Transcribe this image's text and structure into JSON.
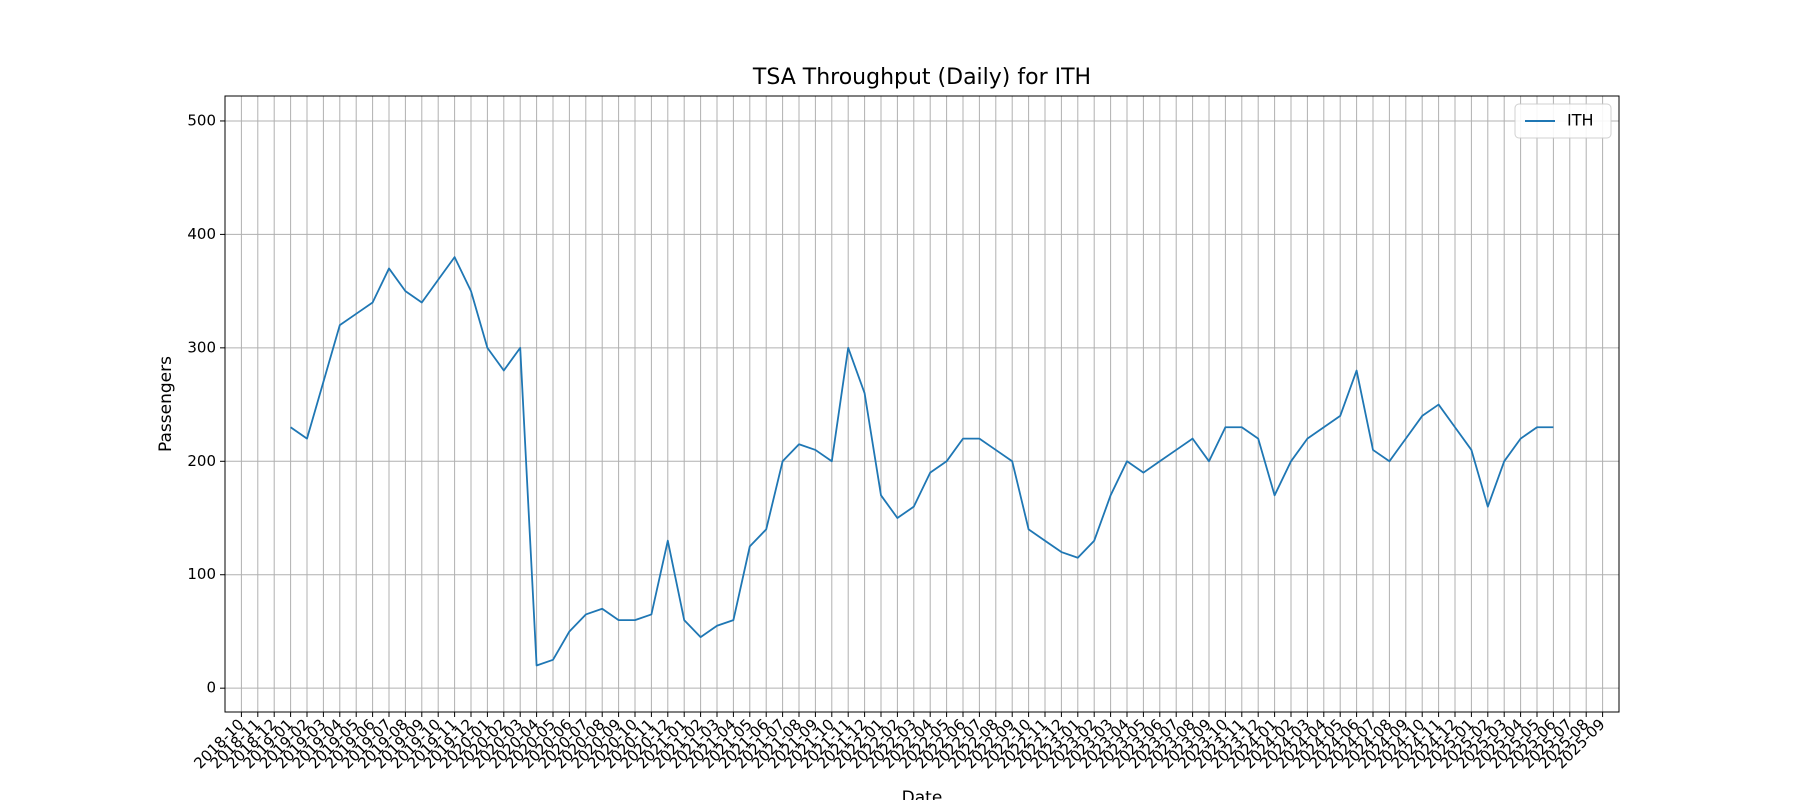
{
  "chart_data": {
    "type": "line",
    "title": "TSA Throughput (Daily) for ITH",
    "xlabel": "Date",
    "ylabel": "Passengers",
    "x": [
      "2019-01",
      "2019-02",
      "2019-03",
      "2019-04",
      "2019-05",
      "2019-06",
      "2019-07",
      "2019-08",
      "2019-09",
      "2019-10",
      "2019-11",
      "2019-12",
      "2020-01",
      "2020-02",
      "2020-03",
      "2020-04",
      "2020-05",
      "2020-06",
      "2020-07",
      "2020-08",
      "2020-09",
      "2020-10",
      "2020-11",
      "2020-12",
      "2021-01",
      "2021-02",
      "2021-03",
      "2021-04",
      "2021-05",
      "2021-06",
      "2021-07",
      "2021-08",
      "2021-09",
      "2021-10",
      "2021-11",
      "2021-12",
      "2022-01",
      "2022-02",
      "2022-03",
      "2022-04",
      "2022-05",
      "2022-06",
      "2022-07",
      "2022-08",
      "2022-09",
      "2022-10",
      "2022-11",
      "2022-12",
      "2023-01",
      "2023-02",
      "2023-03",
      "2023-04",
      "2023-05",
      "2023-06",
      "2023-07",
      "2023-08",
      "2023-09",
      "2023-10",
      "2023-11",
      "2023-12",
      "2024-01",
      "2024-02",
      "2024-03",
      "2024-04",
      "2024-05",
      "2024-06",
      "2024-07",
      "2024-08",
      "2024-09",
      "2024-10",
      "2024-11",
      "2024-12",
      "2025-01",
      "2025-02",
      "2025-03",
      "2025-04",
      "2025-05",
      "2025-06"
    ],
    "series": [
      {
        "name": "ITH",
        "color": "#1f77b4",
        "values": [
          230,
          220,
          270,
          320,
          330,
          340,
          370,
          350,
          340,
          360,
          380,
          350,
          300,
          280,
          300,
          20,
          25,
          50,
          65,
          70,
          60,
          60,
          65,
          130,
          60,
          45,
          55,
          60,
          125,
          140,
          200,
          215,
          210,
          200,
          300,
          260,
          170,
          150,
          160,
          190,
          200,
          220,
          220,
          210,
          200,
          140,
          130,
          120,
          115,
          130,
          170,
          200,
          190,
          200,
          210,
          220,
          200,
          230,
          230,
          220,
          170,
          200,
          220,
          230,
          240,
          280,
          210,
          200,
          220,
          240,
          250,
          230,
          210,
          160,
          200,
          220,
          230,
          230
        ]
      }
    ],
    "xlim": [
      "2018-09",
      "2025-10"
    ],
    "xticks": [
      "2018-10",
      "2018-11",
      "2018-12",
      "2019-01",
      "2019-02",
      "2019-03",
      "2019-04",
      "2019-05",
      "2019-06",
      "2019-07",
      "2019-08",
      "2019-09",
      "2019-10",
      "2019-11",
      "2019-12",
      "2020-01",
      "2020-02",
      "2020-03",
      "2020-04",
      "2020-05",
      "2020-06",
      "2020-07",
      "2020-08",
      "2020-09",
      "2020-10",
      "2020-11",
      "2020-12",
      "2021-01",
      "2021-02",
      "2021-03",
      "2021-04",
      "2021-05",
      "2021-06",
      "2021-07",
      "2021-08",
      "2021-09",
      "2021-10",
      "2021-11",
      "2021-12",
      "2022-01",
      "2022-02",
      "2022-03",
      "2022-04",
      "2022-05",
      "2022-06",
      "2022-07",
      "2022-08",
      "2022-09",
      "2022-10",
      "2022-11",
      "2022-12",
      "2023-01",
      "2023-02",
      "2023-03",
      "2023-04",
      "2023-05",
      "2023-06",
      "2023-07",
      "2023-08",
      "2023-09",
      "2023-10",
      "2023-11",
      "2023-12",
      "2024-01",
      "2024-02",
      "2024-03",
      "2024-04",
      "2024-05",
      "2024-06",
      "2024-07",
      "2024-08",
      "2024-09",
      "2024-10",
      "2024-11",
      "2024-12",
      "2025-01",
      "2025-02",
      "2025-03",
      "2025-04",
      "2025-05",
      "2025-06",
      "2025-07",
      "2025-08",
      "2025-09"
    ],
    "ylim": [
      -21,
      522
    ],
    "yticks": [
      0,
      100,
      200,
      300,
      400,
      500
    ],
    "grid": true,
    "legend": "upper right"
  }
}
